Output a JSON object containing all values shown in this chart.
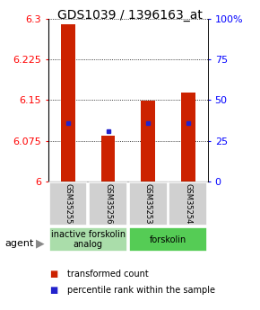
{
  "title": "GDS1039 / 1396163_at",
  "samples": [
    "GSM35255",
    "GSM35256",
    "GSM35253",
    "GSM35254"
  ],
  "transformed_counts": [
    6.29,
    6.085,
    6.148,
    6.163
  ],
  "percentile_ranks": [
    6.107,
    6.093,
    6.108,
    6.108
  ],
  "y_min": 6.0,
  "y_max": 6.3,
  "y_ticks": [
    6.0,
    6.075,
    6.15,
    6.225,
    6.3
  ],
  "y_tick_labels": [
    "6",
    "6.075",
    "6.15",
    "6.225",
    "6.3"
  ],
  "right_y_ticks": [
    0,
    25,
    50,
    75,
    100
  ],
  "right_y_tick_labels": [
    "0",
    "25",
    "50",
    "75",
    "100%"
  ],
  "bar_color": "#cc2200",
  "percentile_color": "#2222cc",
  "groups": [
    {
      "label": "inactive forskolin\nanalog",
      "samples": [
        0,
        1
      ],
      "color": "#aaddaa"
    },
    {
      "label": "forskolin",
      "samples": [
        2,
        3
      ],
      "color": "#55cc55"
    }
  ],
  "agent_label": "agent",
  "legend_items": [
    {
      "color": "#cc2200",
      "label": "transformed count"
    },
    {
      "color": "#2222cc",
      "label": "percentile rank within the sample"
    }
  ],
  "bar_width": 0.35,
  "title_fontsize": 10,
  "tick_fontsize": 8,
  "sample_fontsize": 6,
  "group_fontsize": 7,
  "legend_fontsize": 7
}
